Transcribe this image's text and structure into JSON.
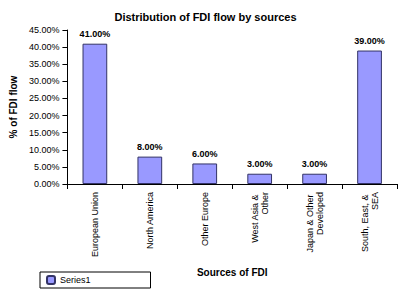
{
  "chart_data": {
    "type": "bar",
    "title": "Distribution of FDI flow by sources",
    "x_label": "Sources of FDI",
    "y_label": "% of FDI flow",
    "categories": [
      "European Union",
      "North America",
      "Other Europe",
      "West Asia & Other",
      "Japan & Other Developed",
      "South, East, & SEA"
    ],
    "series": [
      {
        "name": "Series1",
        "color": "#9999ff",
        "values": [
          41,
          8,
          6,
          3,
          3,
          39
        ],
        "value_labels": [
          "41.00%",
          "8.00%",
          "6.00%",
          "3.00%",
          "3.00%",
          "39.00%"
        ]
      }
    ],
    "ylim": [
      0,
      45
    ],
    "yticks": [
      {
        "value": 0,
        "label": "0.00%"
      },
      {
        "value": 5,
        "label": "5.00%"
      },
      {
        "value": 10,
        "label": "10.00%"
      },
      {
        "value": 15,
        "label": "15.00%"
      },
      {
        "value": 20,
        "label": "20.00%"
      },
      {
        "value": 25,
        "label": "25.00%"
      },
      {
        "value": 30,
        "label": "30.00%"
      },
      {
        "value": 35,
        "label": "35.00%"
      },
      {
        "value": 40,
        "label": "40.00%"
      },
      {
        "value": 45,
        "label": "45.00%"
      }
    ],
    "grid": false,
    "legend": "bottom",
    "data_labels": true
  }
}
